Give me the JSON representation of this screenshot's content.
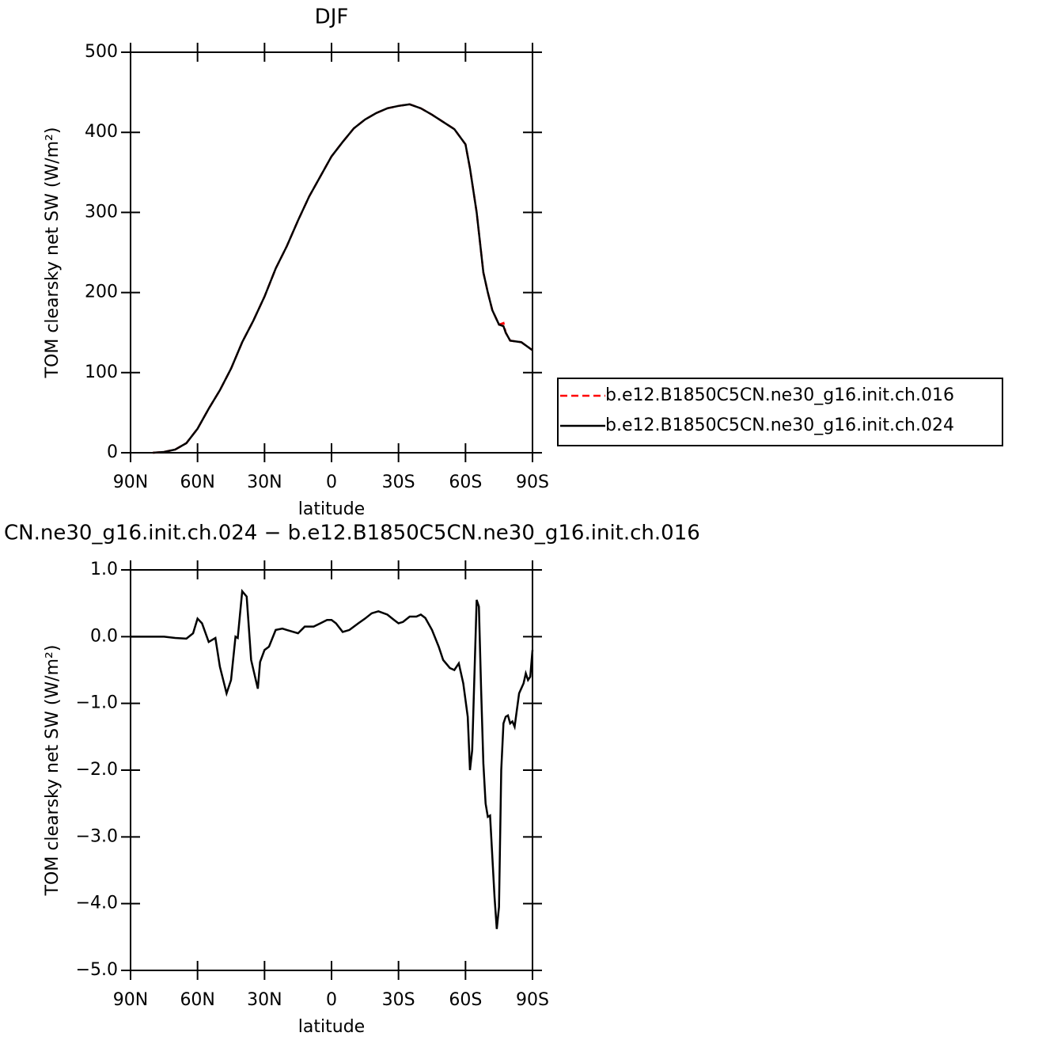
{
  "chart_data": [
    {
      "type": "line",
      "title": "DJF",
      "xlabel": "latitude",
      "ylabel": "TOM clearsky net SW (W/m²)",
      "x": [
        80,
        75,
        70,
        65,
        60,
        55,
        50,
        45,
        40,
        35,
        30,
        25,
        20,
        15,
        10,
        5,
        0,
        -5,
        -10,
        -15,
        -20,
        -25,
        -30,
        -35,
        -40,
        -45,
        -50,
        -55,
        -60,
        -62,
        -65,
        -68,
        -70,
        -72,
        -75,
        -77,
        -78,
        -80,
        -85,
        -90
      ],
      "series": [
        {
          "name": "b.e12.B1850C5CN.ne30_g16.init.ch.016",
          "color": "#ff0000",
          "line_style": "dashed",
          "values": [
            0,
            1,
            4,
            12,
            30,
            55,
            78,
            105,
            138,
            165,
            195,
            230,
            258,
            290,
            320,
            345,
            370,
            388,
            405,
            416,
            424,
            430,
            433,
            435,
            430,
            422,
            413,
            404,
            385,
            355,
            300,
            225,
            200,
            178,
            160,
            162,
            150,
            140,
            138,
            128
          ]
        },
        {
          "name": "b.e12.B1850C5CN.ne30_g16.init.ch.024",
          "color": "#000000",
          "line_style": "solid",
          "values": [
            0,
            1,
            4,
            12,
            30,
            55,
            78,
            105,
            138,
            165,
            195,
            230,
            258,
            290,
            320,
            345,
            370,
            388,
            405,
            416,
            424,
            430,
            433,
            435,
            430,
            422,
            413,
            404,
            385,
            355,
            300,
            225,
            200,
            178,
            160,
            158,
            150,
            140,
            138,
            128
          ]
        }
      ],
      "xlim": [
        90,
        -90
      ],
      "xticks": [
        {
          "value": 90,
          "label": "90N"
        },
        {
          "value": 60,
          "label": "60N"
        },
        {
          "value": 30,
          "label": "30N"
        },
        0,
        {
          "value": -30,
          "label": "30S"
        },
        {
          "value": -60,
          "label": "60S"
        },
        {
          "value": -90,
          "label": "90S"
        }
      ],
      "ylim": [
        0,
        500
      ],
      "yticks": [
        0,
        100,
        200,
        300,
        400,
        500
      ],
      "legend": "right"
    },
    {
      "type": "line",
      "title": "CN.ne30_g16.init.ch.024 − b.e12.B1850C5CN.ne30_g16.init.ch.016",
      "xlabel": "latitude",
      "ylabel": "TOM clearsky net SW (W/m²)",
      "x": [
        90,
        80,
        75,
        70,
        65,
        62,
        60,
        58,
        55,
        52,
        50,
        47,
        45,
        43,
        42,
        40,
        38,
        36,
        33,
        32,
        30,
        28,
        25,
        22,
        20,
        15,
        12,
        8,
        5,
        2,
        0,
        -2,
        -5,
        -8,
        -12,
        -15,
        -18,
        -21,
        -25,
        -28,
        -30,
        -32,
        -35,
        -38,
        -40,
        -42,
        -45,
        -48,
        -50,
        -53,
        -55,
        -57,
        -59,
        -61,
        -62,
        -63,
        -65,
        -66,
        -67,
        -68,
        -69,
        -70,
        -71,
        -73,
        -74,
        -75,
        -76,
        -77,
        -78,
        -79,
        -80,
        -81,
        -82,
        -83,
        -84,
        -86,
        -87,
        -88,
        -89,
        -90
      ],
      "color": "#000000",
      "line_style": "solid",
      "values": [
        0,
        0,
        0,
        -0.02,
        -0.03,
        0.05,
        0.27,
        0.2,
        -0.08,
        -0.02,
        -0.45,
        -0.85,
        -0.65,
        0.0,
        -0.02,
        0.68,
        0.6,
        -0.35,
        -0.78,
        -0.38,
        -0.2,
        -0.15,
        0.1,
        0.12,
        0.1,
        0.05,
        0.15,
        0.15,
        0.2,
        0.25,
        0.25,
        0.2,
        0.07,
        0.1,
        0.2,
        0.27,
        0.35,
        0.38,
        0.33,
        0.25,
        0.2,
        0.22,
        0.3,
        0.3,
        0.33,
        0.28,
        0.1,
        -0.15,
        -0.35,
        -0.47,
        -0.5,
        -0.4,
        -0.7,
        -1.2,
        -2.0,
        -1.7,
        0.55,
        0.45,
        -0.8,
        -1.9,
        -2.5,
        -2.7,
        -2.68,
        -3.9,
        -4.38,
        -4.05,
        -2.0,
        -1.3,
        -1.2,
        -1.18,
        -1.3,
        -1.27,
        -1.35,
        -1.1,
        -0.85,
        -0.7,
        -0.55,
        -0.65,
        -0.6,
        -0.2
      ],
      "xlim": [
        90,
        -90
      ],
      "xticks": [
        {
          "value": 90,
          "label": "90N"
        },
        {
          "value": 60,
          "label": "60N"
        },
        {
          "value": 30,
          "label": "30N"
        },
        0,
        {
          "value": -30,
          "label": "30S"
        },
        {
          "value": -60,
          "label": "60S"
        },
        {
          "value": -90,
          "label": "90S"
        }
      ],
      "ylim": [
        -5,
        1
      ],
      "yticks": [
        {
          "value": -5,
          "label": "−5.0"
        },
        {
          "value": -4,
          "label": "−4.0"
        },
        {
          "value": -3,
          "label": "−3.0"
        },
        {
          "value": -2,
          "label": "−2.0"
        },
        {
          "value": -1,
          "label": "−1.0"
        },
        {
          "value": 0,
          "label": "0.0"
        },
        {
          "value": 1,
          "label": "1.0"
        }
      ]
    }
  ]
}
